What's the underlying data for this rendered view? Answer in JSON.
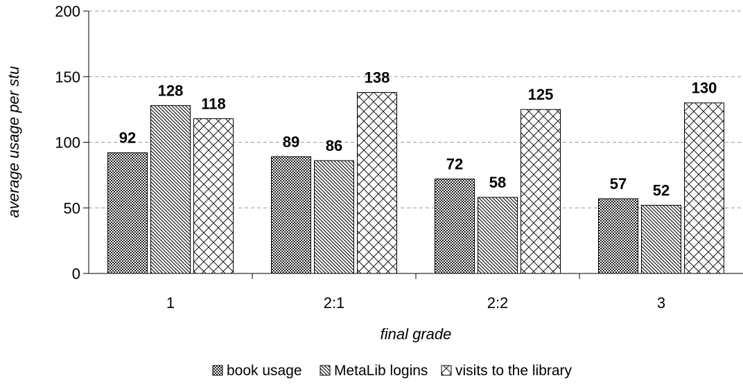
{
  "chart_data": {
    "type": "bar",
    "categories": [
      "1",
      "2:1",
      "2:2",
      "3"
    ],
    "series": [
      {
        "name": "book usage",
        "values": [
          92,
          89,
          72,
          57
        ]
      },
      {
        "name": "MetaLib logins",
        "values": [
          128,
          86,
          58,
          52
        ]
      },
      {
        "name": "visits to the library",
        "values": [
          118,
          138,
          125,
          130
        ]
      }
    ],
    "xlabel": "final grade",
    "ylabel": "average usage per stu",
    "ylim": [
      0,
      200
    ],
    "yticks": [
      0,
      50,
      100,
      150,
      200
    ],
    "grid": "horizontal-dashed",
    "legend_position": "bottom",
    "show_data_labels": true
  }
}
